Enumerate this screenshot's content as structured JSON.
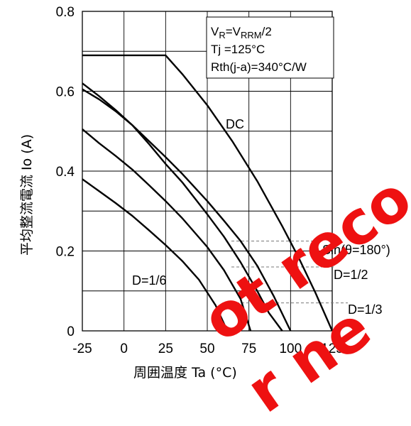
{
  "chart_data": {
    "type": "line",
    "xlabel": "周囲温度 Ta (°C)",
    "ylabel": "平均整流電流 Io (A)",
    "xlim": [
      -25,
      125
    ],
    "ylim": [
      0,
      0.8
    ],
    "xticks": [
      "-25",
      "0",
      "25",
      "50",
      "75",
      "100",
      "125"
    ],
    "yticks": [
      "0",
      "0.2",
      "0.4",
      "0.6",
      "0.8"
    ],
    "grid": true,
    "conditions": {
      "vr_main": "V",
      "vr_sub": "R",
      "vr_eq": "=V",
      "vrrm_sub": "RRM",
      "vr_tail": "/2",
      "tj": "Tj =125°C",
      "rth": "Rth(j-a)=340°C/W"
    },
    "series": [
      {
        "name": "DC",
        "x": [
          -25,
          25,
          35,
          50,
          65,
          80,
          95,
          105,
          115,
          125
        ],
        "y": [
          0.69,
          0.69,
          0.643,
          0.565,
          0.475,
          0.375,
          0.262,
          0.182,
          0.095,
          0
        ]
      },
      {
        "name": "Sin(θ=180°)",
        "x": [
          -25,
          -15,
          -5,
          5,
          15,
          25,
          35,
          50,
          60,
          70,
          80,
          90,
          100
        ],
        "y": [
          0.62,
          0.588,
          0.553,
          0.515,
          0.475,
          0.435,
          0.393,
          0.325,
          0.276,
          0.225,
          0.163,
          0.086,
          0
        ]
      },
      {
        "name": "D=1/2",
        "x": [
          -25,
          -15,
          -5,
          5,
          15,
          25,
          35,
          50,
          60,
          70,
          80,
          87,
          95
        ],
        "y": [
          0.605,
          0.58,
          0.55,
          0.515,
          0.468,
          0.418,
          0.372,
          0.292,
          0.236,
          0.172,
          0.1,
          0.045,
          0
        ]
      },
      {
        "name": "D=1/3",
        "x": [
          -25,
          -15,
          -5,
          5,
          15,
          25,
          35,
          50,
          60,
          70,
          76
        ],
        "y": [
          0.505,
          0.47,
          0.438,
          0.404,
          0.365,
          0.325,
          0.282,
          0.21,
          0.152,
          0.08,
          0
        ]
      },
      {
        "name": "D=1/6",
        "x": [
          -25,
          -15,
          -5,
          5,
          15,
          25,
          35,
          45,
          55,
          62
        ],
        "y": [
          0.38,
          0.35,
          0.32,
          0.288,
          0.252,
          0.215,
          0.175,
          0.128,
          0.064,
          0
        ]
      }
    ],
    "annotations": [
      "DC",
      "Sin(θ=180°)",
      "D=1/2",
      "D=1/3",
      "D=1/6"
    ],
    "dashed_levels": [
      0.225,
      0.16,
      0.07
    ]
  },
  "watermark": {
    "lines": [
      "ot reco",
      "r ne"
    ],
    "color": "#ee1111"
  }
}
